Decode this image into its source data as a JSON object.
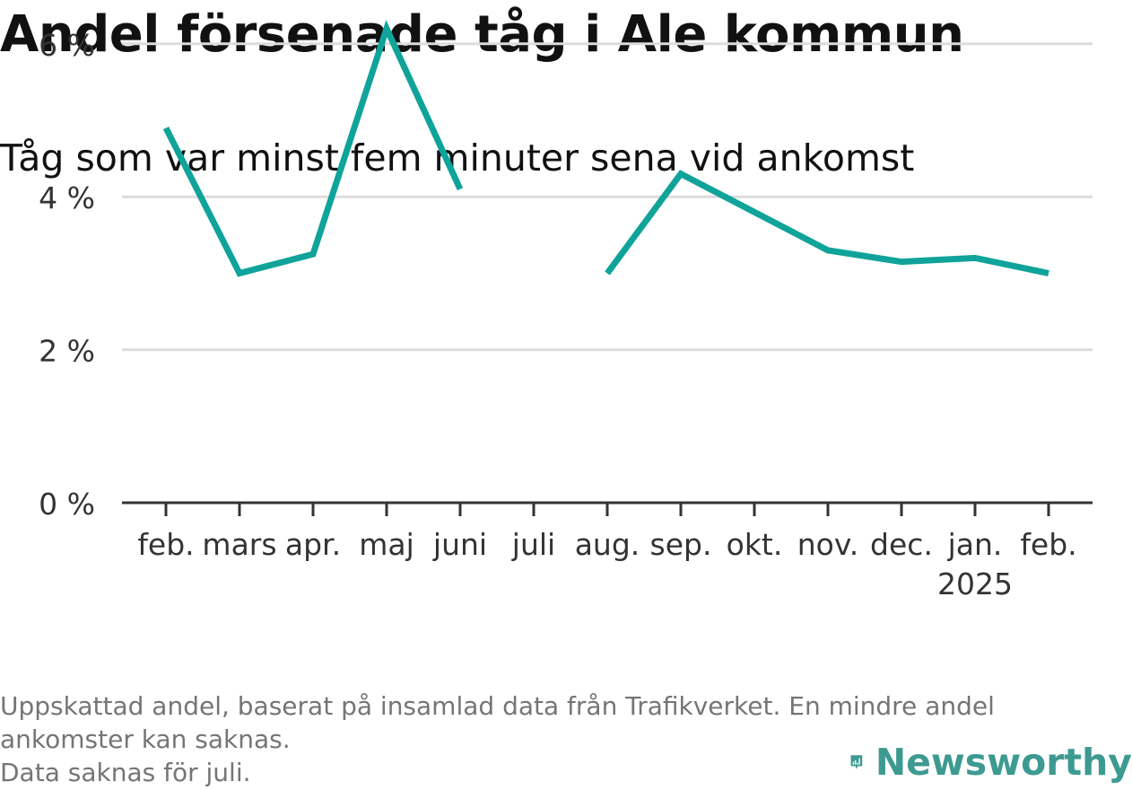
{
  "chart_data": {
    "type": "line",
    "title": "Andel försenade tåg i Ale kommun",
    "subtitle": "Tåg som var minst fem minuter sena vid ankomst",
    "categories": [
      "feb.",
      "mars",
      "apr.",
      "maj",
      "juni",
      "juli",
      "aug.",
      "sep.",
      "okt.",
      "nov.",
      "dec.",
      "jan.",
      "feb."
    ],
    "category_sublabels": [
      "",
      "",
      "",
      "",
      "",
      "",
      "",
      "",
      "",
      "",
      "",
      "2025",
      ""
    ],
    "series": [
      {
        "values": [
          4.9,
          3.0,
          3.25,
          6.2,
          4.1,
          null,
          3.0,
          4.3,
          3.8,
          3.3,
          3.15,
          3.2,
          3.0
        ]
      }
    ],
    "y_ticks": [
      0,
      2,
      4,
      6
    ],
    "y_tick_labels": [
      "0 %",
      "2 %",
      "4 %",
      "6 %"
    ],
    "ylim": [
      0,
      6.4
    ],
    "xlabel": "",
    "ylabel": "",
    "grid": true,
    "line_color": "#0fa39a"
  },
  "footnote": {
    "line1": "Uppskattad andel, baserat på insamlad data från Trafikverket. En mindre andel",
    "line2": "ankomster kan saknas.",
    "line3": "Data saknas för juli."
  },
  "logo": {
    "text": "Newsworthy",
    "icon": "newsworthy-logo-icon",
    "color": "#3d9a91"
  }
}
